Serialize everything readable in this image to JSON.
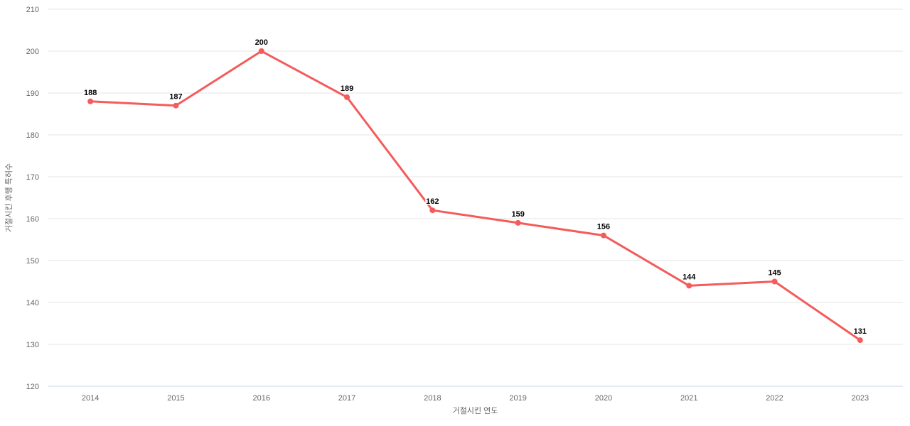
{
  "chart_data": {
    "type": "line",
    "categories": [
      "2014",
      "2015",
      "2016",
      "2017",
      "2018",
      "2019",
      "2020",
      "2021",
      "2022",
      "2023"
    ],
    "values": [
      188,
      187,
      200,
      189,
      162,
      159,
      156,
      144,
      145,
      131
    ],
    "data_labels": [
      "188",
      "187",
      "200",
      "189",
      "162",
      "159",
      "156",
      "144",
      "145",
      "131"
    ],
    "title": "",
    "xlabel": "거절시킨 연도",
    "ylabel": "거절시킨 후행 특허수",
    "ylim": [
      120,
      210
    ],
    "ytick_step": 10,
    "ytick_labels": [
      "120",
      "130",
      "140",
      "150",
      "160",
      "170",
      "180",
      "190",
      "200",
      "210"
    ],
    "grid": true,
    "legend_position": "none",
    "colors": {
      "line": "#f45b5b",
      "marker": "#f45b5b",
      "gridline": "#e6e6e6",
      "axis_line": "#ccd6eb",
      "tick_label": "#666666",
      "axis_title": "#666666",
      "data_label": "#000000",
      "background": "#ffffff"
    }
  }
}
